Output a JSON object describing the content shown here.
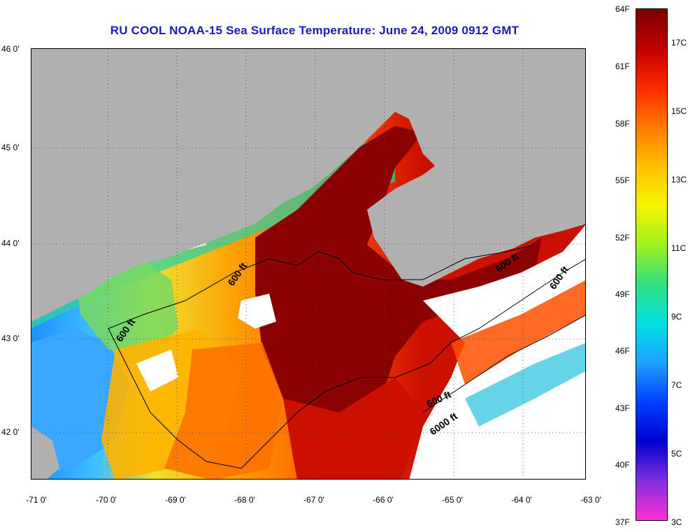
{
  "title": "RU COOL  NOAA-15  Sea Surface Temperature:  June 24, 2009 0912 GMT",
  "map": {
    "lat_labels": [
      "46 0'",
      "45 0'",
      "44 0'",
      "43 0'",
      "42 0'"
    ],
    "lon_labels": [
      "-71 0'",
      "-70 0'",
      "-69 0'",
      "-68 0'",
      "-67 0'",
      "-66 0'",
      "-65 0'",
      "-64 0'",
      "-63 0'"
    ],
    "contour_labels": [
      "600 ft",
      "600 ft",
      "600 ft",
      "600 ft",
      "600 ft",
      "6000 ft"
    ],
    "colors": {
      "land": "#b0b0b0",
      "cloud": "#ffffff",
      "warm": "#8b0000",
      "coast": "#000000"
    }
  },
  "colorbar": {
    "fahrenheit_labels": [
      "64F",
      "61F",
      "58F",
      "55F",
      "52F",
      "49F",
      "46F",
      "43F",
      "40F",
      "37F"
    ],
    "celsius_labels": [
      "17C",
      "15C",
      "13C",
      "11C",
      "9C",
      "7C",
      "5C",
      "3C"
    ],
    "gradient_colors": [
      "#7a0000",
      "#c00000",
      "#ff2a00",
      "#ff7a00",
      "#ffc000",
      "#f5f500",
      "#a0f020",
      "#30e080",
      "#00e0e0",
      "#20a0ff",
      "#0040ff",
      "#0000d0",
      "#8030e0",
      "#ff30d0"
    ]
  }
}
